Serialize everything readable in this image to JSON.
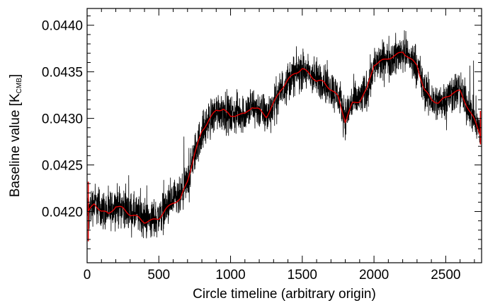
{
  "chart_data": {
    "type": "line",
    "title": "",
    "xlabel": "Circle timeline (arbitrary origin)",
    "ylabel_main": "Baseline value [K",
    "ylabel_sub": "CMB",
    "ylabel_close": "]",
    "xlim": [
      0,
      2750
    ],
    "ylim": [
      0.04145,
      0.04418
    ],
    "xticks": [
      0,
      500,
      1000,
      1500,
      2000,
      2500
    ],
    "xtick_labels": [
      "0",
      "500",
      "1000",
      "1500",
      "2000",
      "2500"
    ],
    "yticks": [
      0.042,
      0.0425,
      0.043,
      0.0435,
      0.044
    ],
    "ytick_labels": [
      "0.0420",
      "0.0425",
      "0.0430",
      "0.0435",
      "0.0440"
    ],
    "grid": false,
    "legend": "none",
    "colors": {
      "raw": "#000000",
      "smoothed": "#e00000"
    },
    "series": [
      {
        "values_description": "raw baseline values (black, noisy)",
        "x": [
          0,
          50,
          100,
          150,
          200,
          250,
          300,
          350,
          400,
          450,
          500,
          550,
          600,
          650,
          700,
          750,
          800,
          850,
          900,
          950,
          1000,
          1050,
          1100,
          1150,
          1200,
          1250,
          1300,
          1350,
          1400,
          1450,
          1500,
          1550,
          1600,
          1650,
          1700,
          1750,
          1800,
          1850,
          1900,
          1950,
          2000,
          2050,
          2100,
          2150,
          2200,
          2250,
          2300,
          2350,
          2400,
          2450,
          2500,
          2550,
          2600,
          2650,
          2700,
          2740
        ],
        "y": [
          0.04198,
          0.0421,
          0.04203,
          0.04199,
          0.04207,
          0.04205,
          0.04199,
          0.04196,
          0.04193,
          0.04191,
          0.04195,
          0.04203,
          0.04211,
          0.04214,
          0.04232,
          0.04262,
          0.04285,
          0.04298,
          0.04307,
          0.0431,
          0.04302,
          0.04306,
          0.04305,
          0.04312,
          0.0431,
          0.04303,
          0.04315,
          0.0433,
          0.0434,
          0.04348,
          0.04352,
          0.04347,
          0.04342,
          0.0434,
          0.04332,
          0.04324,
          0.04302,
          0.04318,
          0.0432,
          0.0433,
          0.04357,
          0.0436,
          0.04364,
          0.04366,
          0.04372,
          0.04365,
          0.04358,
          0.0433,
          0.0432,
          0.04316,
          0.04322,
          0.04328,
          0.0433,
          0.04315,
          0.043,
          0.04285
        ],
        "noise_amplitude": 0.00016
      },
      {
        "values_description": "smoothed baseline (red)",
        "x": [
          0,
          50,
          100,
          150,
          200,
          250,
          300,
          350,
          400,
          450,
          500,
          550,
          600,
          650,
          700,
          750,
          800,
          850,
          900,
          950,
          1000,
          1050,
          1100,
          1150,
          1200,
          1250,
          1300,
          1350,
          1400,
          1450,
          1500,
          1550,
          1600,
          1650,
          1700,
          1750,
          1800,
          1850,
          1900,
          1950,
          2000,
          2050,
          2100,
          2150,
          2200,
          2250,
          2300,
          2350,
          2400,
          2450,
          2500,
          2550,
          2600,
          2650,
          2700,
          2740
        ],
        "y": [
          0.04198,
          0.04208,
          0.04201,
          0.04197,
          0.04206,
          0.04203,
          0.04197,
          0.04194,
          0.04189,
          0.0419,
          0.04193,
          0.04202,
          0.0421,
          0.04213,
          0.04233,
          0.04262,
          0.04286,
          0.04299,
          0.04308,
          0.04311,
          0.04301,
          0.04305,
          0.04304,
          0.04313,
          0.04309,
          0.04302,
          0.04316,
          0.04331,
          0.04341,
          0.04349,
          0.04353,
          0.04348,
          0.0434,
          0.04339,
          0.04331,
          0.04323,
          0.04297,
          0.04316,
          0.04319,
          0.04331,
          0.04358,
          0.04361,
          0.04365,
          0.04367,
          0.04372,
          0.04364,
          0.04357,
          0.04331,
          0.0432,
          0.04317,
          0.04322,
          0.04328,
          0.04329,
          0.04313,
          0.04298,
          0.04283
        ]
      }
    ]
  }
}
